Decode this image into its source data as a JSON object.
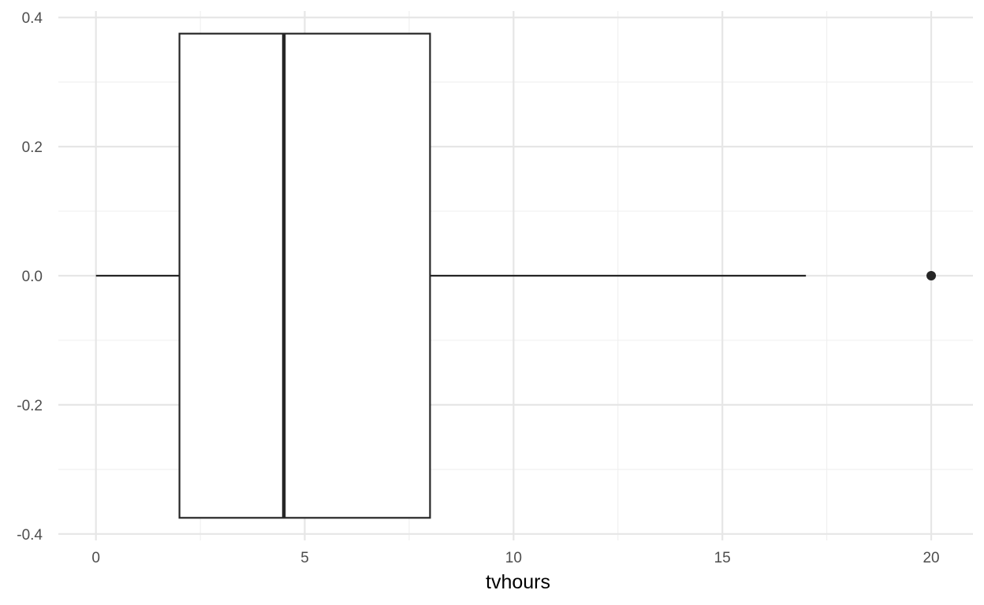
{
  "chart_data": {
    "type": "boxplot",
    "xlabel": "tvhours",
    "ylabel": "",
    "xlim": [
      -0.9,
      21.0
    ],
    "ylim": [
      -0.41,
      0.41
    ],
    "x_ticks": [
      0,
      5,
      10,
      15,
      20
    ],
    "x_tick_labels": [
      "0",
      "5",
      "10",
      "15",
      "20"
    ],
    "x_minor_ticks": [
      2.5,
      7.5,
      12.5,
      17.5
    ],
    "y_ticks": [
      -0.4,
      -0.2,
      0.0,
      0.2,
      0.4
    ],
    "y_tick_labels": [
      "-0.4",
      "-0.2",
      "0.0",
      "0.2",
      "0.4"
    ],
    "y_minor_ticks": [
      -0.3,
      -0.1,
      0.1,
      0.3
    ],
    "grid": true,
    "box": {
      "whisker_low": 0,
      "q1": 2,
      "median": 4.5,
      "q3": 8,
      "whisker_high": 17,
      "y_center": 0.0,
      "half_width": 0.375
    },
    "outliers": [
      {
        "x": 20,
        "y": 0.0
      }
    ],
    "colors": {
      "line": "#262626",
      "box_fill": "#ffffff",
      "grid_major": "#e6e6e6",
      "grid_minor": "#f0f0f0"
    }
  }
}
